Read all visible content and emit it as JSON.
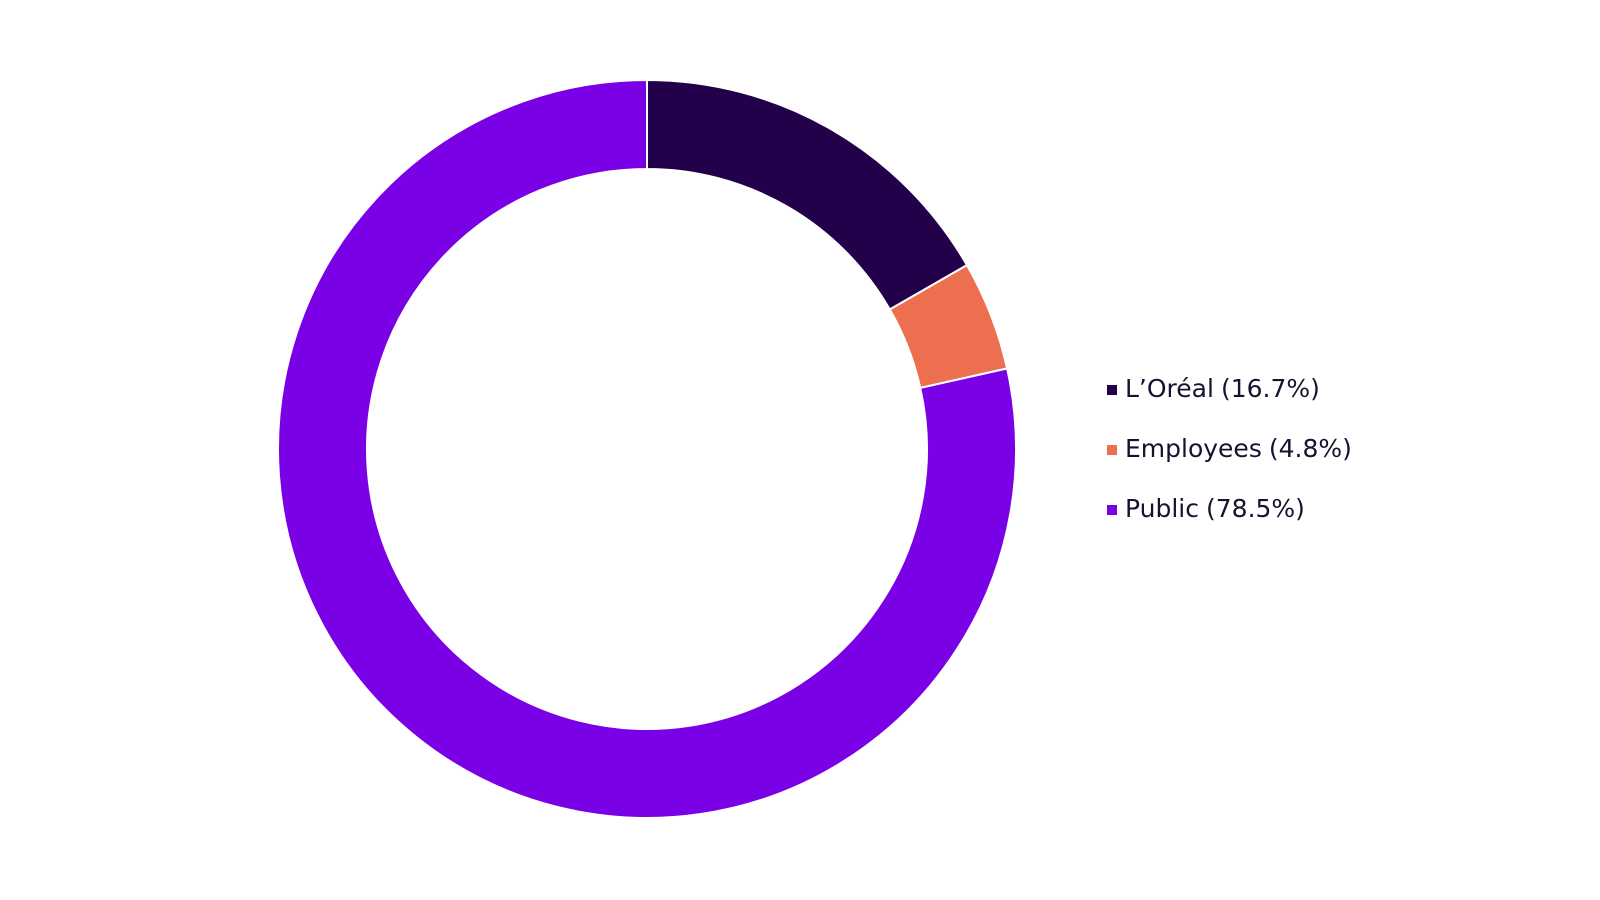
{
  "chart_data": {
    "type": "donut",
    "categories": [
      "L’Oréal",
      "Employees",
      "Public"
    ],
    "values": [
      16.7,
      4.8,
      78.5
    ],
    "value_labels": [
      "(16.7%)",
      "(4.8%)",
      "(78.5%)"
    ],
    "colors": [
      "#22004a",
      "#ec6f50",
      "#7a00e6"
    ],
    "legend": "right"
  }
}
